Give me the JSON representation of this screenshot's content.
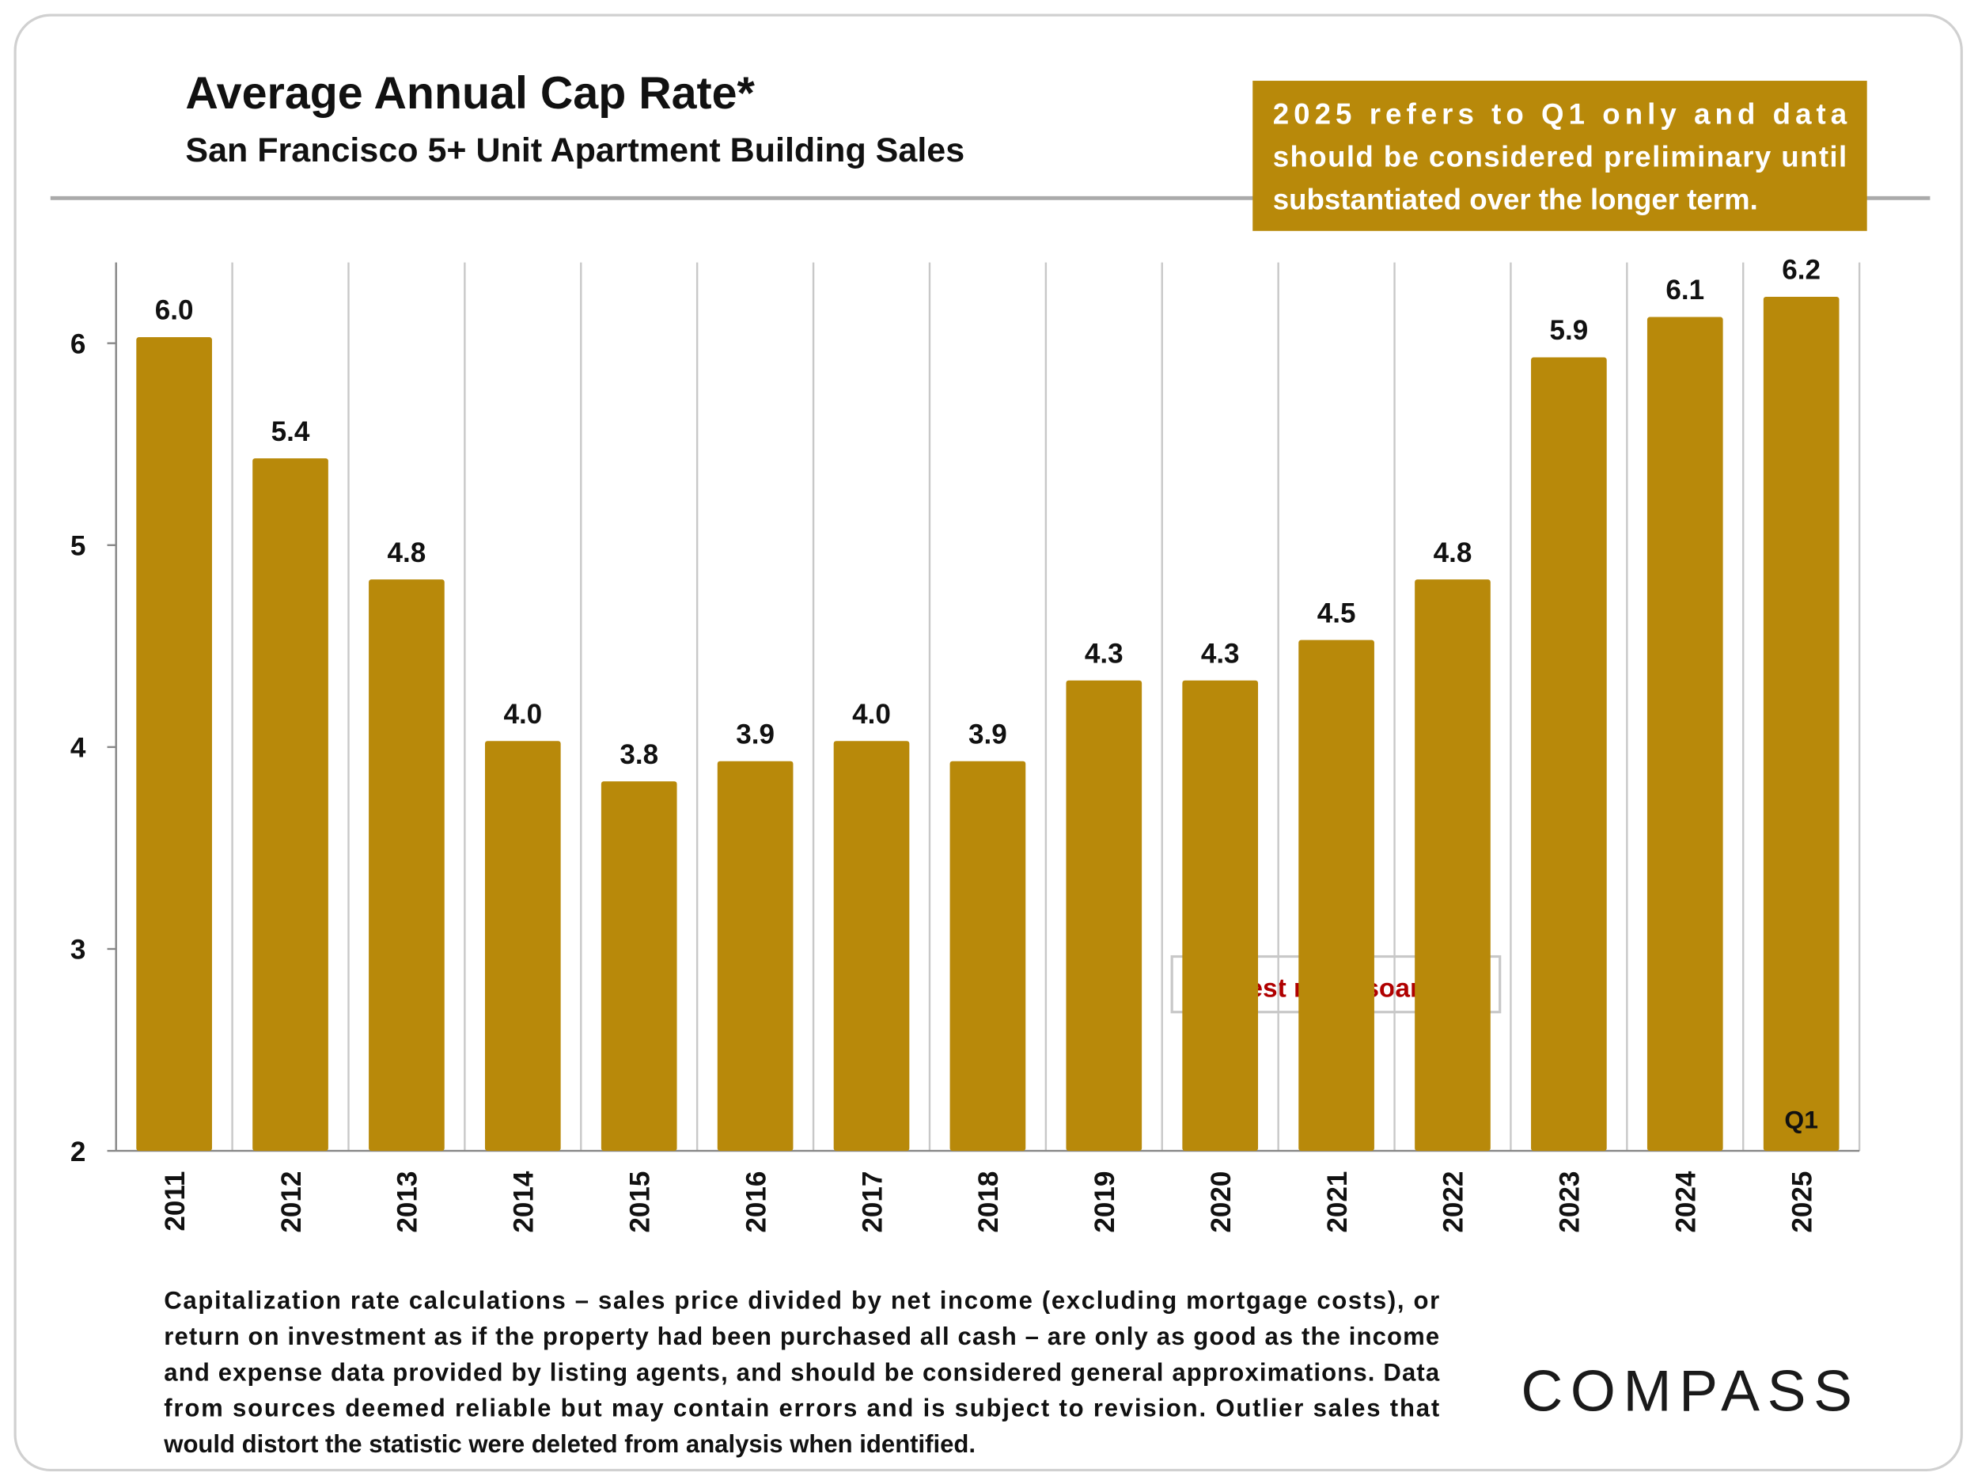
{
  "chart_data": {
    "type": "bar",
    "title": "Average Annual Cap Rate*",
    "subtitle": "San Francisco 5+ Unit Apartment Building Sales",
    "note": [
      "2025 refers to Q1 only and data",
      "should be considered preliminary until",
      "substantiated over the longer term."
    ],
    "annotation": "Interest rates soar ↑",
    "bar_annotation": "Q1",
    "categories": [
      "2011",
      "2012",
      "2013",
      "2014",
      "2015",
      "2016",
      "2017",
      "2018",
      "2019",
      "2020",
      "2021",
      "2022",
      "2023",
      "2024",
      "2025"
    ],
    "values": [
      6.03,
      5.43,
      4.83,
      4.03,
      3.83,
      3.93,
      4.03,
      3.93,
      4.33,
      4.33,
      4.53,
      4.83,
      5.93,
      6.13,
      6.23
    ],
    "value_labels": [
      "6.0",
      "5.4",
      "4.8",
      "4.0",
      "3.8",
      "3.9",
      "4.0",
      "3.9",
      "4.3",
      "4.3",
      "4.5",
      "4.8",
      "5.9",
      "6.1",
      "6.2"
    ],
    "color": "#b8890a",
    "ylim": [
      2,
      6.4
    ],
    "yticks": [
      2,
      3,
      4,
      5,
      6
    ],
    "footnote": [
      "Capitalization rate calculations – sales price divided by net income (excluding mortgage costs), or",
      "return on investment as if the property had been purchased all cash – are only as good as the income",
      "and expense data provided by listing agents, and should be considered general approximations. Data",
      "from sources deemed reliable but may contain errors and is subject to revision. Outlier sales that",
      "would distort the statistic were deleted from analysis when identified."
    ],
    "brand": "COMPASS"
  }
}
